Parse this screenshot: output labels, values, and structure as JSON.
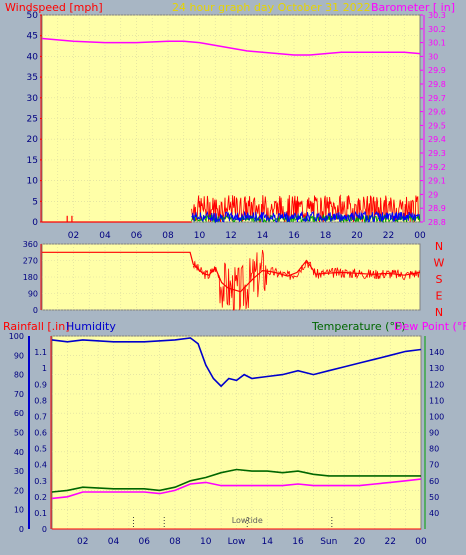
{
  "header": {
    "windspeed_label": "Windspeed [mph]",
    "title": "24 hour graph day   October 31 2022",
    "barometer_label": "Barometer [ in]"
  },
  "time_ticks": [
    "02",
    "04",
    "06",
    "08",
    "10",
    "12",
    "14",
    "16",
    "18",
    "20",
    "22",
    "00"
  ],
  "bottom_time_ticks": [
    "02",
    "04",
    "06",
    "08",
    "10",
    "Low",
    "14",
    "16",
    "Sun",
    "20",
    "22",
    "00"
  ],
  "colors": {
    "plot_bg": "#ffffa8",
    "page_bg": "#a8b6c4",
    "wind_gust": "#ff0000",
    "wind_avg": "#0000ff",
    "wind_green": "#00a000",
    "barometer": "#ff00ff",
    "direction": "#ff0000",
    "humidity": "#0000cc",
    "temperature": "#006600",
    "dew_point": "#ff00ff",
    "rainfall": "#ff0000",
    "grid": "#d8d8a0",
    "title": "#e6d400"
  },
  "chart_data": [
    {
      "type": "line",
      "name": "wind-barometer",
      "xlabel": "",
      "x_range": [
        0,
        24
      ],
      "ylabel_left": "Windspeed [mph]",
      "ylim_left": [
        0,
        50
      ],
      "yticks_left": [
        0,
        5,
        10,
        15,
        20,
        25,
        30,
        35,
        40,
        45,
        50
      ],
      "ylabel_right": "Barometer [ in]",
      "ylim_right": [
        28.8,
        30.3
      ],
      "yticks_right": [
        28.8,
        28.9,
        29.0,
        29.1,
        29.2,
        29.3,
        29.4,
        29.5,
        29.6,
        29.7,
        29.8,
        29.9,
        30.0,
        30.1,
        30.2,
        30.3
      ],
      "yticks_right_labels": [
        "28.8",
        "28.9",
        "29",
        "29.1",
        "29.2",
        "29.3",
        "29.4",
        "29.5",
        "29.6",
        "29.7",
        "29.8",
        "29.9",
        "30",
        "30.1",
        "30.2",
        "30.3"
      ],
      "barometer": {
        "x": [
          0,
          2,
          4,
          6,
          8,
          9,
          10,
          11,
          12,
          13,
          14,
          15,
          16,
          17,
          18,
          19,
          20,
          21,
          22,
          23,
          24
        ],
        "y": [
          30.13,
          30.11,
          30.1,
          30.1,
          30.11,
          30.11,
          30.1,
          30.08,
          30.06,
          30.04,
          30.03,
          30.02,
          30.01,
          30.01,
          30.02,
          30.03,
          30.03,
          30.03,
          30.03,
          30.03,
          30.02
        ]
      },
      "wind_activity_window": [
        9.5,
        24
      ],
      "wind_gust_typical": [
        0,
        6.5
      ],
      "wind_avg_typical": [
        0,
        2.5
      ]
    },
    {
      "type": "line",
      "name": "wind-direction",
      "x_range": [
        0,
        24
      ],
      "ylim": [
        0,
        360
      ],
      "yticks": [
        0,
        90,
        180,
        270,
        360
      ],
      "yticks_labels": [
        "0",
        "90",
        "180",
        "270",
        "360"
      ],
      "compass_labels": [
        "N",
        "W",
        "S",
        "E",
        "N"
      ],
      "direction": {
        "x": [
          0,
          1,
          2,
          4,
          6,
          8,
          9.4,
          9.6,
          10.2,
          10.6,
          11.0,
          11.4,
          11.8,
          12.6,
          13.4,
          14.0,
          14.5,
          15.0,
          15.6,
          16.2,
          16.8,
          17.4,
          18.0,
          19.0,
          20.0,
          21.0,
          22.0,
          23.0,
          24.0
        ],
        "y": [
          315,
          315,
          315,
          315,
          315,
          315,
          315,
          250,
          200,
          190,
          230,
          150,
          120,
          100,
          170,
          215,
          210,
          200,
          185,
          205,
          270,
          195,
          200,
          205,
          200,
          195,
          200,
          190,
          205
        ]
      }
    },
    {
      "type": "line",
      "name": "humidity-temp-rain",
      "x_range": [
        0,
        24
      ],
      "ylabel_left_1": "Rainfall [.in]",
      "ylabel_left_2": "Humidity",
      "ylabel_right_1": "Temperature (°F)",
      "ylabel_right_2": "Dew Point (°F)",
      "ylim_humidity": [
        0,
        100
      ],
      "yticks_humidity": [
        0,
        10,
        20,
        30,
        40,
        50,
        60,
        70,
        80,
        90,
        100
      ],
      "ylim_rain": [
        0,
        1.2
      ],
      "yticks_rain": [
        0,
        0.1,
        0.2,
        0.3,
        0.4,
        0.5,
        0.6,
        0.7,
        0.8,
        0.9,
        1.0,
        1.1
      ],
      "yticks_rain_labels": [
        "0",
        "0.1",
        "0.2",
        "0.3",
        "0.4",
        "0.5",
        "0.6",
        "0.7",
        "0.8",
        "0.9",
        "1",
        "1.1"
      ],
      "ylim_temp": [
        30,
        150
      ],
      "yticks_temp": [
        40,
        50,
        60,
        70,
        80,
        90,
        100,
        110,
        120,
        130,
        140
      ],
      "humidity": {
        "x": [
          0,
          1,
          2,
          4,
          6,
          8,
          9.0,
          9.5,
          10.0,
          10.5,
          11.0,
          11.5,
          12.0,
          12.5,
          13.0,
          14.0,
          15.0,
          16.0,
          17.0,
          18.0,
          19.0,
          20.0,
          21.0,
          22.0,
          23.0,
          24.0
        ],
        "y": [
          98,
          97,
          98,
          97,
          97,
          98,
          99,
          96,
          85,
          78,
          74,
          78,
          77,
          80,
          78,
          79,
          80,
          82,
          80,
          82,
          84,
          86,
          88,
          90,
          92,
          93
        ]
      },
      "temperature": {
        "x": [
          0,
          1,
          2,
          4,
          6,
          7,
          8,
          9,
          10,
          11,
          12,
          13,
          14,
          15,
          16,
          17,
          18,
          19,
          20,
          21,
          22,
          23,
          24
        ],
        "y": [
          53,
          54,
          56,
          55,
          55,
          54,
          56,
          60,
          62,
          65,
          67,
          66,
          66,
          65,
          66,
          64,
          63,
          63,
          63,
          63,
          63,
          63,
          63
        ]
      },
      "dew_point": {
        "x": [
          0,
          1,
          2,
          4,
          6,
          7,
          8,
          9,
          10,
          11,
          12,
          13,
          14,
          15,
          16,
          17,
          18,
          19,
          20,
          21,
          22,
          23,
          24
        ],
        "y": [
          49,
          50,
          53,
          53,
          53,
          52,
          54,
          58,
          59,
          57,
          57,
          57,
          57,
          57,
          58,
          57,
          57,
          57,
          57,
          58,
          59,
          60,
          61
        ]
      },
      "rainfall": {
        "x": [
          0,
          24
        ],
        "y": [
          0,
          0
        ]
      },
      "events": [
        {
          "x": 5.3
        },
        {
          "x": 7.3
        },
        {
          "x": 12.7,
          "label": "Lowtide"
        },
        {
          "x": 18.2
        }
      ]
    }
  ]
}
